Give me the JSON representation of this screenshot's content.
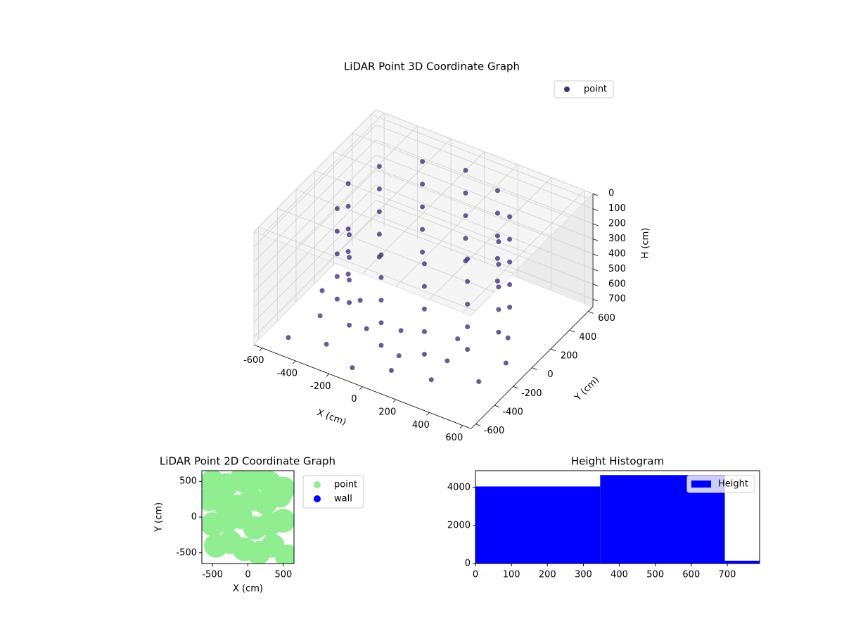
{
  "chart_data": [
    {
      "type": "scatter3d",
      "title": "LiDAR Point 3D Coordinate Graph",
      "xlabel": "X (cm)",
      "ylabel": "Y (cm)",
      "zlabel": "H (cm)",
      "xlim": [
        -650,
        650
      ],
      "ylim": [
        -650,
        650
      ],
      "zlim": [
        0,
        750
      ],
      "z_inverted": true,
      "xticks": [
        -600,
        -400,
        -200,
        0,
        200,
        400,
        600
      ],
      "yticks": [
        -600,
        -400,
        -200,
        0,
        200,
        400,
        600
      ],
      "zticks": [
        0,
        100,
        200,
        300,
        400,
        500,
        600,
        700
      ],
      "legend_loc": "upper right",
      "grid": true,
      "series": [
        {
          "name": "point",
          "color": "#46317e",
          "x": [
            450,
            390,
            225,
            0,
            -225,
            -390,
            -450,
            -390,
            -225,
            0,
            225,
            390,
            450,
            390,
            225,
            0,
            -225,
            -390,
            -450,
            -390,
            -225,
            0,
            225,
            390,
            450,
            390,
            225,
            0,
            -225,
            -390,
            -450,
            -390,
            -225,
            0,
            225,
            390,
            450,
            390,
            225,
            0,
            -225,
            -390,
            -450,
            -390,
            -225,
            0,
            225,
            390,
            450,
            390,
            225,
            0,
            -225,
            -390,
            -450,
            -390,
            -225,
            0,
            225,
            390,
            -500,
            -300,
            -100,
            100,
            300,
            500,
            -450,
            -200,
            50,
            300,
            550,
            -550,
            -350,
            -50,
            250,
            450
          ],
          "y": [
            0,
            225,
            390,
            450,
            390,
            225,
            0,
            -225,
            -390,
            -450,
            -390,
            -225,
            0,
            225,
            390,
            450,
            390,
            225,
            0,
            -225,
            -390,
            -450,
            -390,
            -225,
            0,
            225,
            390,
            450,
            390,
            225,
            0,
            -225,
            -390,
            -450,
            -390,
            -225,
            0,
            225,
            390,
            450,
            390,
            225,
            0,
            -225,
            -390,
            -450,
            -390,
            -225,
            0,
            225,
            390,
            450,
            390,
            225,
            0,
            -225,
            -390,
            -450,
            -390,
            -225,
            -550,
            -500,
            -580,
            -520,
            -450,
            -300,
            -300,
            -250,
            -350,
            -280,
            -100,
            -100,
            -50,
            -150,
            -80,
            100
          ],
          "z": [
            0,
            0,
            0,
            0,
            0,
            0,
            0,
            0,
            0,
            0,
            0,
            0,
            150,
            150,
            150,
            150,
            150,
            150,
            150,
            150,
            150,
            150,
            150,
            150,
            300,
            300,
            300,
            300,
            300,
            300,
            300,
            300,
            300,
            300,
            300,
            300,
            450,
            450,
            450,
            450,
            450,
            450,
            450,
            450,
            450,
            450,
            450,
            450,
            600,
            600,
            600,
            600,
            600,
            600,
            600,
            600,
            600,
            600,
            600,
            600,
            700,
            690,
            710,
            680,
            700,
            720,
            690,
            700,
            710,
            680,
            700,
            690,
            700,
            710,
            680,
            700
          ]
        }
      ]
    },
    {
      "type": "scatter",
      "title": "LiDAR Point 2D Coordinate Graph",
      "xlabel": "X (cm)",
      "ylabel": "Y (cm)",
      "xlim": [
        -650,
        650
      ],
      "ylim": [
        -650,
        650
      ],
      "xticks": [
        -500,
        0,
        500
      ],
      "yticks": [
        -500,
        0,
        500
      ],
      "legend_loc": "outside right",
      "series": [
        {
          "name": "point",
          "color": "#90ee90",
          "x": [
            -500,
            -300,
            -100,
            100,
            300,
            500,
            -550,
            -350,
            -150,
            50,
            250,
            450,
            -500,
            -300,
            -100,
            100,
            300,
            500,
            -450,
            -250,
            -50,
            150,
            350,
            550
          ],
          "y": [
            500,
            450,
            520,
            550,
            480,
            400,
            250,
            200,
            150,
            250,
            200,
            300,
            -100,
            -50,
            0,
            -150,
            -100,
            -50,
            -400,
            -350,
            -450,
            -500,
            -400,
            -550
          ]
        },
        {
          "name": "wall",
          "color": "#0000ff",
          "x": [],
          "y": []
        }
      ]
    },
    {
      "type": "histogram",
      "title": "Height Histogram",
      "bins": [
        0,
        346.7,
        693.3,
        790
      ],
      "series": [
        {
          "name": "Height",
          "color": "#0000ff",
          "values": [
            4050,
            4650,
            150
          ]
        }
      ],
      "xlim": [
        0,
        790
      ],
      "ylim": [
        0,
        4880
      ],
      "xticks": [
        0,
        100,
        200,
        300,
        400,
        500,
        600,
        700
      ],
      "yticks": [
        0,
        2000,
        4000
      ],
      "legend_loc": "upper right"
    }
  ]
}
